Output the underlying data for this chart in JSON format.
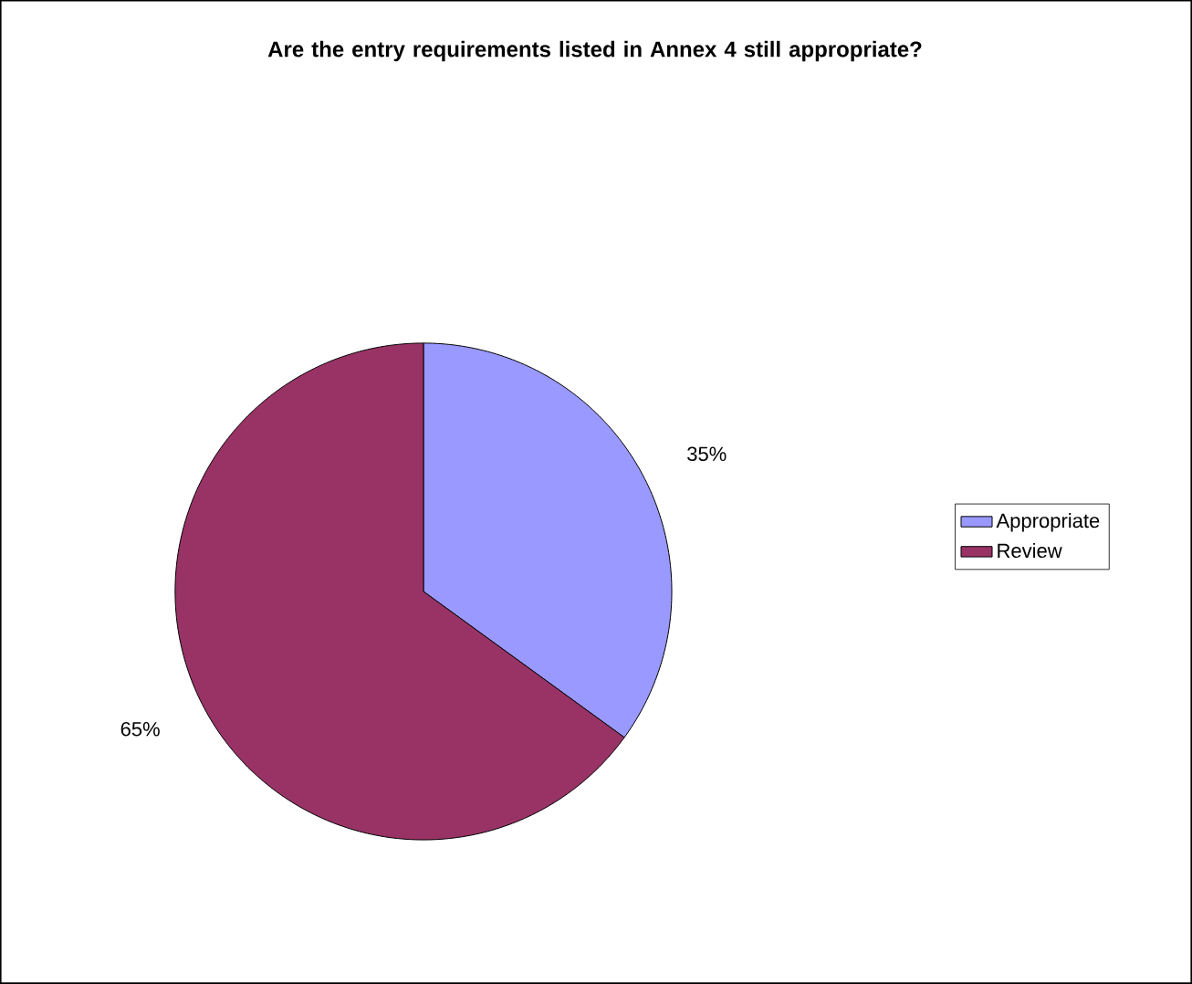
{
  "chart_data": {
    "type": "pie",
    "title": "Are the entry requirements listed in Annex 4 still appropriate?",
    "categories": [
      "Appropriate",
      "Review"
    ],
    "values": [
      35,
      65
    ],
    "colors": [
      "#9999ff",
      "#993366"
    ],
    "value_labels": [
      "35%",
      "65%"
    ],
    "legend": "right"
  }
}
